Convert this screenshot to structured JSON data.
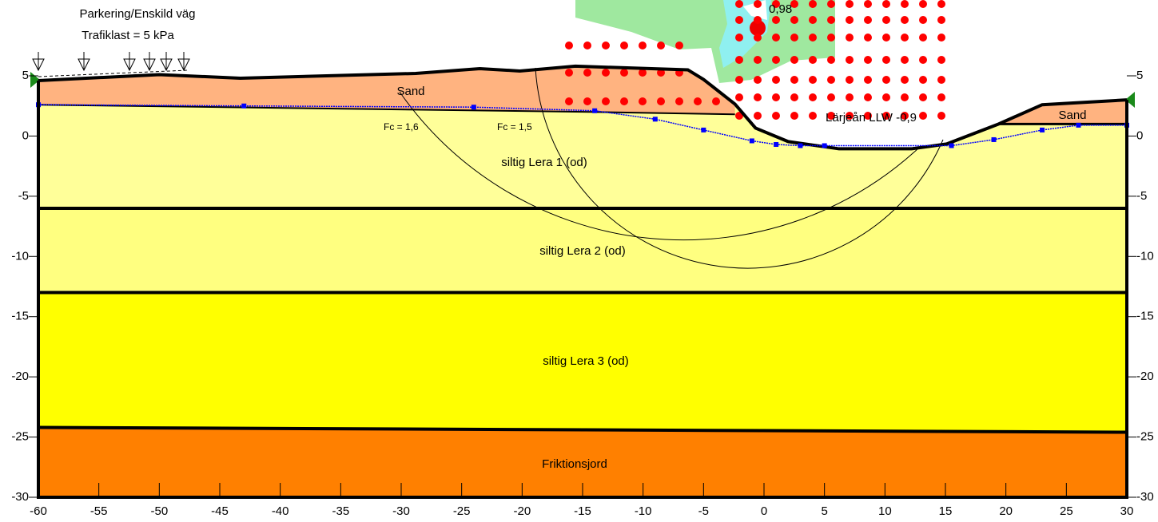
{
  "axes": {
    "xlim": [
      -60,
      30
    ],
    "ylim": [
      -30,
      5
    ],
    "xticks": [
      -60,
      -55,
      -50,
      -45,
      -40,
      -35,
      -30,
      -25,
      -20,
      -15,
      -10,
      -5,
      0,
      5,
      10,
      15,
      20,
      25,
      30
    ],
    "yticks": [
      5,
      0,
      -5,
      -10,
      -15,
      -20,
      -25,
      -30
    ]
  },
  "labels": {
    "load_title": "Parkering/Enskild väg",
    "load_value": "Trafiklast = 5 kPa",
    "water": "Lärjeån LLW -0,9",
    "min_factor": "0,98",
    "fc_1": "Fc = 1,6",
    "fc_2": "Fc = 1,5"
  },
  "layers": [
    {
      "name": "Sand"
    },
    {
      "name": "Sand"
    },
    {
      "name": "siltig Lera 1 (od)"
    },
    {
      "name": "siltig Lera 2 (od)"
    },
    {
      "name": "siltig Lera 3 (od)"
    },
    {
      "name": "Friktionsjord"
    }
  ],
  "surface": {
    "x": [
      -60,
      -50,
      -43.3,
      -28.8,
      -23.5,
      -20.2,
      -15.6,
      -6.3,
      -5,
      -2.4,
      -0.7,
      2,
      6.2,
      12.2,
      15.1,
      19.4,
      23,
      30
    ],
    "y": [
      4.6,
      5.1,
      4.8,
      5.2,
      5.6,
      5.4,
      5.8,
      5.5,
      4.7,
      2.65,
      0.66,
      -0.46,
      -1.06,
      -1.06,
      -0.66,
      1,
      2.6,
      3
    ]
  },
  "sand_base": {
    "x": [
      -60,
      -14.3,
      -2.4
    ],
    "y": [
      2.6,
      2,
      1.8
    ]
  },
  "right_sand_base": {
    "x": [
      19.4,
      30
    ],
    "y": [
      1,
      1
    ]
  },
  "water_table": {
    "x": [
      -60,
      -43,
      -24,
      -14,
      -9,
      -5,
      -1,
      1,
      3,
      5,
      15.5,
      19,
      23,
      26,
      30
    ],
    "y": [
      2.6,
      2.5,
      2.4,
      2.1,
      1.4,
      0.5,
      -0.4,
      -0.7,
      -0.8,
      -0.8,
      -0.8,
      -0.3,
      0.5,
      0.9,
      0.9
    ]
  },
  "boundaries": [
    {
      "x": [
        -60,
        30
      ],
      "y": [
        -6,
        -6
      ]
    },
    {
      "x": [
        -60,
        30
      ],
      "y": [
        -13,
        -13
      ]
    },
    {
      "x": [
        -60,
        30
      ],
      "y": [
        -24.2,
        -24.6
      ]
    }
  ]
}
